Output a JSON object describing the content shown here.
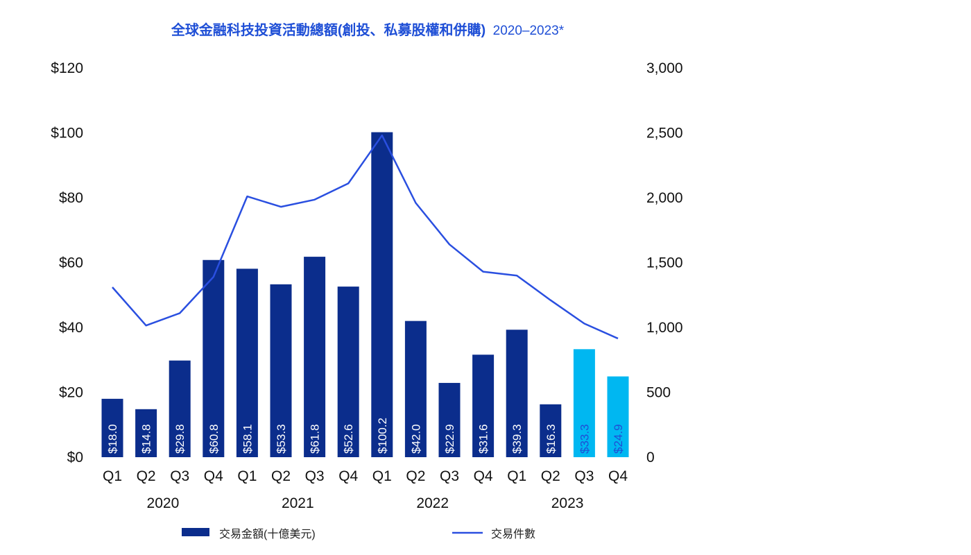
{
  "chart_data": {
    "type": "bar",
    "title": "全球金融科技投資活動總額(創投、私募股權和併購)",
    "title_suffix": "2020–2023*",
    "categories": [
      "Q1",
      "Q2",
      "Q3",
      "Q4",
      "Q1",
      "Q2",
      "Q3",
      "Q4",
      "Q1",
      "Q2",
      "Q3",
      "Q4",
      "Q1",
      "Q2",
      "Q3",
      "Q4"
    ],
    "years": [
      {
        "label": "2020",
        "start_index": 0,
        "end_index": 3
      },
      {
        "label": "2021",
        "start_index": 4,
        "end_index": 7
      },
      {
        "label": "2022",
        "start_index": 8,
        "end_index": 11
      },
      {
        "label": "2023",
        "start_index": 12,
        "end_index": 15
      }
    ],
    "series": [
      {
        "name": "交易金額(十億美元)",
        "type": "bar",
        "axis": "left",
        "values": [
          18.0,
          14.8,
          29.8,
          60.8,
          58.1,
          53.3,
          61.8,
          52.6,
          100.2,
          42.0,
          22.9,
          31.6,
          39.3,
          16.3,
          33.3,
          24.9
        ],
        "labels": [
          "$18.0",
          "$14.8",
          "$29.8",
          "$60.8",
          "$58.1",
          "$53.3",
          "$61.8",
          "$52.6",
          "$100.2",
          "$42.0",
          "$22.9",
          "$31.6",
          "$39.3",
          "$16.3",
          "$33.3",
          "$24.9"
        ],
        "highlight_from_index": 14
      },
      {
        "name": "交易件數",
        "type": "line",
        "axis": "right",
        "values": [
          1310,
          1015,
          1110,
          1390,
          2010,
          1930,
          1985,
          2110,
          2480,
          1960,
          1640,
          1430,
          1400,
          1210,
          1030,
          915
        ]
      }
    ],
    "left_axis": {
      "min": 0,
      "max": 120,
      "ticks": [
        "$0",
        "$20",
        "$40",
        "$60",
        "$80",
        "$100",
        "$120"
      ]
    },
    "right_axis": {
      "min": 0,
      "max": 3000,
      "ticks": [
        "0",
        "500",
        "1,000",
        "1,500",
        "2,000",
        "2,500",
        "3,000"
      ]
    },
    "colors": {
      "title": "#1f4fd6",
      "bar": "#0b2d8c",
      "bar_highlight": "#00b7f1",
      "bar_label": "#ffffff",
      "bar_label_highlight": "#1f4fd6",
      "line": "#2a4fe0"
    },
    "legend": [
      {
        "label": "交易金額(十億美元)",
        "kind": "bar"
      },
      {
        "label": "交易件數",
        "kind": "line"
      }
    ],
    "legend_position": "bottom"
  }
}
